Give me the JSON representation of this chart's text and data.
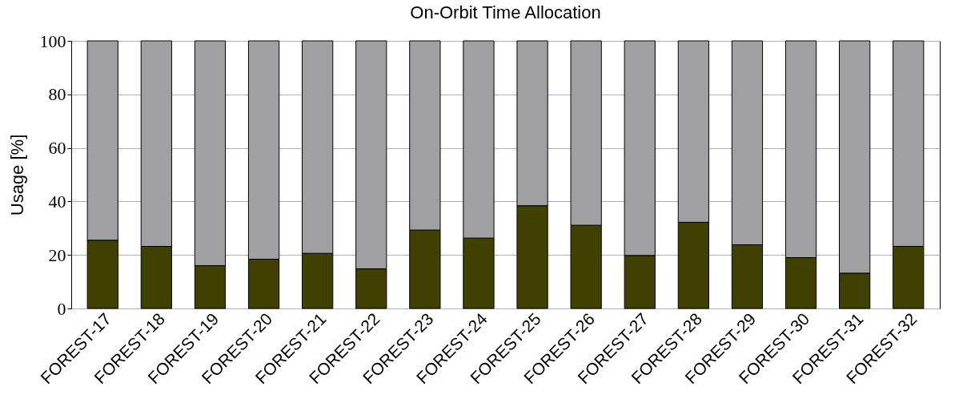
{
  "chart_data": {
    "type": "bar",
    "title": "On-Orbit Time Allocation",
    "ylabel": "Usage [%]",
    "categories": [
      "FOREST-17",
      "FOREST-18",
      "FOREST-19",
      "FOREST-20",
      "FOREST-21",
      "FOREST-22",
      "FOREST-23",
      "FOREST-24",
      "FOREST-25",
      "FOREST-26",
      "FOREST-27",
      "FOREST-28",
      "FOREST-29",
      "FOREST-30",
      "FOREST-31",
      "FOREST-32"
    ],
    "series": [
      {
        "color": "#404000",
        "values": [
          25.5,
          23.2,
          16.0,
          18.4,
          20.6,
          14.8,
          29.3,
          26.3,
          38.4,
          31.1,
          19.8,
          32.2,
          23.8,
          19.0,
          13.2,
          23.2
        ]
      },
      {
        "color": "#a0a0a3",
        "values": [
          74.5,
          76.8,
          84.0,
          81.6,
          79.4,
          85.2,
          70.7,
          73.7,
          61.6,
          68.9,
          80.2,
          67.8,
          76.2,
          81.0,
          86.8,
          76.8
        ]
      }
    ],
    "stacked": true,
    "ylim": [
      0,
      100
    ],
    "yticks": [
      0,
      20,
      40,
      60,
      80,
      100
    ],
    "grid": "y",
    "legend": false
  }
}
